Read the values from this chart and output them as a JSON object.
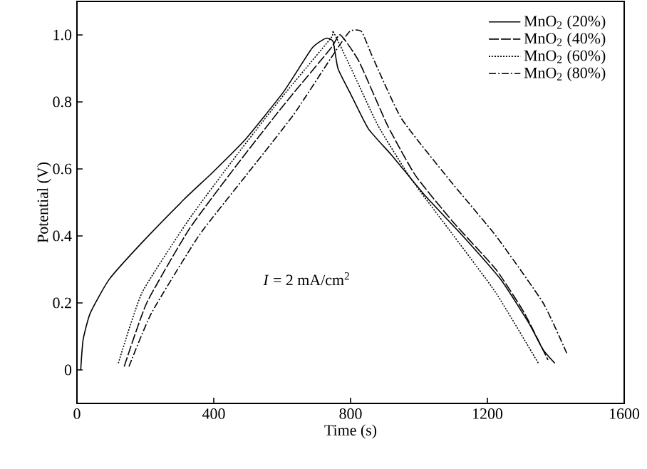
{
  "chart_data": {
    "type": "line",
    "xlabel": "Time (s)",
    "ylabel": "Potential (V)",
    "xlim": [
      0,
      1600
    ],
    "ylim": [
      -0.1,
      1.1
    ],
    "xticks": [
      0,
      400,
      800,
      1200,
      1600
    ],
    "yticks": [
      0,
      0.2,
      0.4,
      0.6,
      0.8,
      {
        "value": 1.0,
        "label": "1.0"
      }
    ],
    "legend": "top right",
    "grid": false,
    "marker": "none",
    "annotations": [
      "*I* = 2 mA/cm$^{2}$"
    ],
    "series": [
      {
        "name": "MnO$_{2}$ (20%)",
        "color": "#000000",
        "line_style": "solid",
        "x": [
          11,
          18,
          39,
          94,
          190,
          314,
          397,
          494,
          604,
          687,
          728,
          749,
          763,
          797,
          852,
          921,
          1018,
          1128,
          1239,
          1321,
          1363,
          1397
        ],
        "values": [
          0,
          0.09,
          0.17,
          0.27,
          0.38,
          0.51,
          0.59,
          0.69,
          0.83,
          0.96,
          0.99,
          0.98,
          0.9,
          0.83,
          0.72,
          0.64,
          0.52,
          0.4,
          0.27,
          0.14,
          0.06,
          0.02
        ]
      },
      {
        "name": "MnO$_{2}$ (40%)",
        "color": "#000000",
        "line_style": "dashed",
        "x": [
          138,
          204,
          328,
          466,
          604,
          742,
          770,
          825,
          908,
          990,
          1101,
          1225,
          1308,
          1377
        ],
        "values": [
          0.01,
          0.2,
          0.42,
          0.61,
          0.79,
          0.96,
          1.0,
          0.92,
          0.73,
          0.58,
          0.44,
          0.3,
          0.17,
          0.03
        ]
      },
      {
        "name": "MnO$_{2}$ (60%)",
        "color": "#000000",
        "line_style": "dotted",
        "x": [
          121,
          190,
          328,
          466,
          604,
          742,
          749,
          797,
          880,
          977,
          1087,
          1225,
          1349
        ],
        "values": [
          0.02,
          0.23,
          0.45,
          0.64,
          0.82,
          0.99,
          1.01,
          0.91,
          0.73,
          0.57,
          0.42,
          0.23,
          0.02
        ]
      },
      {
        "name": "MnO$_{2}$ (80%)",
        "color": "#000000",
        "line_style": "dashdot",
        "x": [
          152,
          218,
          356,
          494,
          632,
          742,
          797,
          832,
          866,
          949,
          1087,
          1225,
          1363,
          1432
        ],
        "values": [
          0.01,
          0.17,
          0.4,
          0.58,
          0.76,
          0.93,
          1.01,
          1.01,
          0.93,
          0.75,
          0.57,
          0.4,
          0.2,
          0.05
        ]
      }
    ]
  }
}
